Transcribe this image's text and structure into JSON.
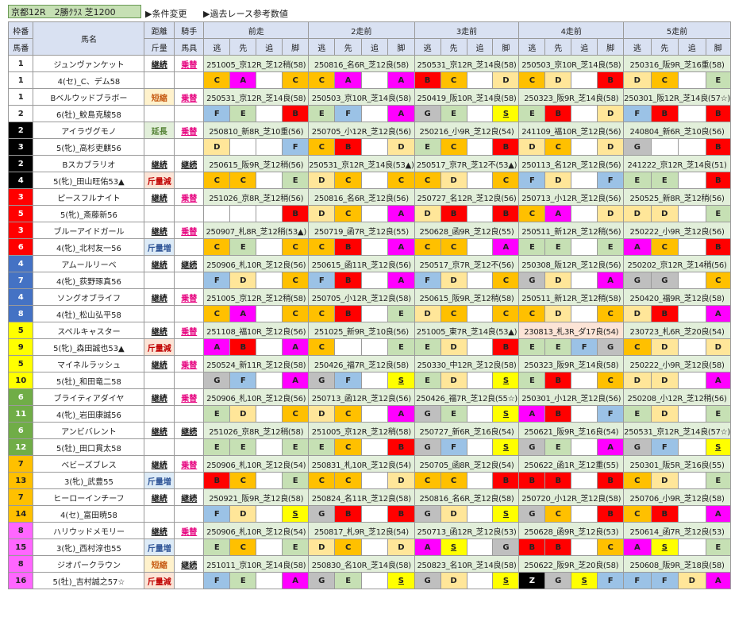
{
  "header": {
    "title": "京都12R　2勝ｸﾗｽ 芝1200",
    "link_condition": "▶条件変更",
    "link_past": "▶過去レース参考数値"
  },
  "columns": {
    "waku_top": "枠番",
    "umaban": "馬番",
    "horse": "馬名",
    "kyori": "距離",
    "kinryo": "斤量",
    "kishu": "騎手",
    "bagu": "馬具",
    "races": [
      "前走",
      "2走前",
      "3走前",
      "4走前",
      "5走前"
    ],
    "sub": [
      "逃",
      "先",
      "追",
      "脚"
    ]
  },
  "colors": {
    "A": "#ff00ff",
    "B": "#ff0000",
    "C": "#ffc000",
    "D": "#ffe699",
    "E": "#c6e0b4",
    "F": "#9bc2e6",
    "G": "#bfbfbf",
    "S": "#ffff00",
    "Z": "#000000",
    "waku": [
      "#ffffff",
      "#000000",
      "#ff0000",
      "#4472c4",
      "#ffff00",
      "#70ad47",
      "#ffc000",
      "#ff66ff"
    ]
  },
  "horses": [
    {
      "waku": "1",
      "uma": "1",
      "name": "ジュンヴァンケット",
      "jockey": "4(セ)_C、デム58",
      "kyori": "継続",
      "kinryo": "",
      "kishu": "乗替",
      "bagu": "",
      "races": [
        {
          "t": "251005_京12R_芝12稍(58)",
          "m": [
            "C",
            "A",
            "",
            "C"
          ]
        },
        {
          "t": "250816_名6R_芝12良(58)",
          "m": [
            "C",
            "A",
            "",
            "A"
          ]
        },
        {
          "t": "250531_京12R_芝14良(58)",
          "m": [
            "B",
            "C",
            "",
            "D"
          ]
        },
        {
          "t": "250503_京10R_芝14良(58)",
          "m": [
            "C",
            "D",
            "",
            "B"
          ]
        },
        {
          "t": "250316_阪9R_芝16重(58)",
          "m": [
            "D",
            "C",
            "",
            "E"
          ]
        }
      ]
    },
    {
      "waku": "1",
      "uma": "2",
      "name": "Bベルウッドブラボー",
      "jockey": "6(牡)_鮫島克駿58",
      "kyori": "短縮",
      "kinryo": "",
      "kishu": "乗替",
      "bagu": "",
      "races": [
        {
          "t": "250531_京12R_芝14良(58)",
          "m": [
            "F",
            "E",
            "",
            "B"
          ]
        },
        {
          "t": "250503_京10R_芝14良(58)",
          "m": [
            "E",
            "F",
            "",
            "A"
          ]
        },
        {
          "t": "250419_阪10R_芝14良(58)",
          "m": [
            "G",
            "E",
            "",
            "S"
          ]
        },
        {
          "t": "250323_阪9R_芝14良(58)",
          "m": [
            "E",
            "B",
            "",
            "D"
          ]
        },
        {
          "t": "250301_阪12R_芝14良(57☆)",
          "m": [
            "F",
            "B",
            "",
            "B"
          ]
        }
      ]
    },
    {
      "waku": "2",
      "uma": "3",
      "name": "アイラヴグモノ",
      "jockey": "5(牝)_高杉吏麒56",
      "kyori": "延長",
      "kinryo": "",
      "kishu": "乗替",
      "bagu": "",
      "races": [
        {
          "t": "250810_新8R_芝10重(56)",
          "m": [
            "D",
            "",
            "",
            "F"
          ]
        },
        {
          "t": "250705_小12R_芝12良(56)",
          "m": [
            "C",
            "B",
            "",
            "D"
          ]
        },
        {
          "t": "250216_小9R_芝12良(54)",
          "m": [
            "E",
            "C",
            "",
            "B"
          ]
        },
        {
          "t": "241109_福10R_芝12良(56)",
          "m": [
            "D",
            "C",
            "",
            "D"
          ]
        },
        {
          "t": "240804_新6R_芝10良(56)",
          "m": [
            "G",
            "",
            "",
            "B"
          ]
        }
      ]
    },
    {
      "waku": "2",
      "uma": "4",
      "name": "Bスカブラリオ",
      "jockey": "5(牝)_田山旺佑53▲",
      "kyori": "継続",
      "kinryo": "斤量減",
      "kishu": "継続",
      "bagu": "",
      "races": [
        {
          "t": "250615_阪9R_芝12稍(56)",
          "m": [
            "C",
            "C",
            "",
            "E"
          ]
        },
        {
          "t": "250531_京12R_芝14良(53▲)",
          "m": [
            "D",
            "C",
            "",
            "C"
          ]
        },
        {
          "t": "250517_京7R_芝12不(53▲)",
          "m": [
            "C",
            "D",
            "",
            "C"
          ]
        },
        {
          "t": "250113_名12R_芝12良(56)",
          "m": [
            "F",
            "D",
            "",
            "F"
          ]
        },
        {
          "t": "241222_京12R_芝14良(51)",
          "m": [
            "E",
            "E",
            "",
            "B"
          ]
        }
      ]
    },
    {
      "waku": "3",
      "uma": "5",
      "name": "ピースフルナイト",
      "jockey": "5(牝)_斎藤新56",
      "kyori": "継続",
      "kinryo": "",
      "kishu": "乗替",
      "bagu": "",
      "races": [
        {
          "t": "251026_京8R_芝12稍(56)",
          "m": [
            "",
            "",
            "",
            "B"
          ]
        },
        {
          "t": "250816_名6R_芝12良(56)",
          "m": [
            "D",
            "C",
            "",
            "A"
          ]
        },
        {
          "t": "250727_名12R_芝12良(56)",
          "m": [
            "D",
            "B",
            "",
            "B"
          ]
        },
        {
          "t": "250713_小12R_芝12良(56)",
          "m": [
            "C",
            "A",
            "",
            "D"
          ]
        },
        {
          "t": "250525_新8R_芝12稍(56)",
          "m": [
            "D",
            "D",
            "",
            "E"
          ]
        }
      ]
    },
    {
      "waku": "3",
      "uma": "6",
      "name": "ブルーアイドガール",
      "jockey": "4(牝)_北村友一56",
      "kyori": "継続",
      "kinryo": "斤量増",
      "kishu": "乗替",
      "bagu": "",
      "races": [
        {
          "t": "250907_札8R_芝12稍(53▲)",
          "m": [
            "C",
            "E",
            "",
            "C"
          ]
        },
        {
          "t": "250719_函7R_芝12良(55)",
          "m": [
            "C",
            "B",
            "",
            "A"
          ]
        },
        {
          "t": "250628_函9R_芝12良(55)",
          "m": [
            "C",
            "C",
            "",
            "A"
          ]
        },
        {
          "t": "250511_新12R_芝12稍(56)",
          "m": [
            "E",
            "E",
            "",
            "E"
          ]
        },
        {
          "t": "250222_小9R_芝12良(56)",
          "m": [
            "A",
            "C",
            "",
            "B"
          ]
        }
      ]
    },
    {
      "waku": "4",
      "uma": "7",
      "name": "アムールリーベ",
      "jockey": "4(牝)_荻野琢真56",
      "kyori": "継続",
      "kinryo": "",
      "kishu": "継続",
      "bagu": "",
      "races": [
        {
          "t": "250906_札10R_芝12良(56)",
          "m": [
            "F",
            "D",
            "",
            "C"
          ]
        },
        {
          "t": "250615_函11R_芝12良(56)",
          "m": [
            "F",
            "B",
            "",
            "A"
          ]
        },
        {
          "t": "250517_京7R_芝12不(56)",
          "m": [
            "F",
            "D",
            "",
            "C"
          ]
        },
        {
          "t": "250308_阪12R_芝12良(56)",
          "m": [
            "G",
            "D",
            "",
            "A"
          ]
        },
        {
          "t": "250202_京12R_芝14稍(56)",
          "m": [
            "G",
            "G",
            "",
            "C"
          ]
        }
      ]
    },
    {
      "waku": "4",
      "uma": "8",
      "name": "ソングオブライフ",
      "jockey": "4(牡)_松山弘平58",
      "kyori": "継続",
      "kinryo": "",
      "kishu": "乗替",
      "bagu": "",
      "races": [
        {
          "t": "251005_京12R_芝12稍(58)",
          "m": [
            "C",
            "A",
            "",
            "C"
          ]
        },
        {
          "t": "250705_小12R_芝12良(58)",
          "m": [
            "C",
            "B",
            "",
            "E"
          ]
        },
        {
          "t": "250615_阪9R_芝12稍(58)",
          "m": [
            "D",
            "C",
            "",
            "C"
          ]
        },
        {
          "t": "250511_新12R_芝12稍(58)",
          "m": [
            "C",
            "D",
            "",
            "C"
          ]
        },
        {
          "t": "250420_福9R_芝12良(58)",
          "m": [
            "D",
            "B",
            "",
            "A"
          ]
        }
      ]
    },
    {
      "waku": "5",
      "uma": "9",
      "name": "スペルキャスター",
      "jockey": "5(牝)_森田誠也53▲",
      "kyori": "継続",
      "kinryo": "斤量減",
      "kishu": "乗替",
      "bagu": "",
      "races": [
        {
          "t": "251108_福10R_芝12良(56)",
          "m": [
            "A",
            "B",
            "",
            "A"
          ]
        },
        {
          "t": "251025_新9R_芝10良(56)",
          "m": [
            "C",
            "",
            "",
            "E"
          ]
        },
        {
          "t": "251005_東7R_芝14良(53▲)",
          "m": [
            "E",
            "D",
            "",
            "B"
          ]
        },
        {
          "t": "230813_札3R_ダ17良(54)",
          "m": [
            "E",
            "E",
            "F",
            "G"
          ],
          "pink": true
        },
        {
          "t": "230723_札6R_芝20良(54)",
          "m": [
            "C",
            "D",
            "",
            "D"
          ]
        }
      ]
    },
    {
      "waku": "5",
      "uma": "10",
      "name": "マイネルラッシュ",
      "jockey": "5(牡)_和田竜二58",
      "kyori": "継続",
      "kinryo": "",
      "kishu": "乗替",
      "bagu": "",
      "races": [
        {
          "t": "250524_新11R_芝12良(58)",
          "m": [
            "G",
            "F",
            "",
            "A"
          ]
        },
        {
          "t": "250426_福7R_芝12良(58)",
          "m": [
            "G",
            "F",
            "",
            "S"
          ]
        },
        {
          "t": "250330_中12R_芝12良(58)",
          "m": [
            "E",
            "D",
            "",
            "S"
          ]
        },
        {
          "t": "250323_阪9R_芝14良(58)",
          "m": [
            "E",
            "B",
            "",
            "C"
          ]
        },
        {
          "t": "250222_小9R_芝12良(58)",
          "m": [
            "D",
            "D",
            "",
            "A"
          ]
        }
      ]
    },
    {
      "waku": "6",
      "uma": "11",
      "name": "ブライティアダイヤ",
      "jockey": "4(牝)_岩田康誠56",
      "kyori": "継続",
      "kinryo": "",
      "kishu": "乗替",
      "bagu": "",
      "races": [
        {
          "t": "250906_札10R_芝12良(56)",
          "m": [
            "E",
            "D",
            "",
            "C"
          ]
        },
        {
          "t": "250713_函12R_芝12良(56)",
          "m": [
            "D",
            "C",
            "",
            "A"
          ]
        },
        {
          "t": "250426_福7R_芝12良(55☆)",
          "m": [
            "G",
            "E",
            "",
            "S"
          ]
        },
        {
          "t": "250301_小12R_芝12良(56)",
          "m": [
            "A",
            "B",
            "",
            "F"
          ]
        },
        {
          "t": "250208_小12R_芝12稍(56)",
          "m": [
            "E",
            "D",
            "",
            "E"
          ]
        }
      ]
    },
    {
      "waku": "6",
      "uma": "12",
      "name": "アンビバレント",
      "jockey": "5(牡)_田口貫太58",
      "kyori": "継続",
      "kinryo": "",
      "kishu": "継続",
      "bagu": "",
      "races": [
        {
          "t": "251026_京8R_芝12稍(58)",
          "m": [
            "E",
            "E",
            "",
            "E"
          ]
        },
        {
          "t": "251005_京12R_芝12稍(58)",
          "m": [
            "E",
            "C",
            "",
            "B"
          ]
        },
        {
          "t": "250727_新6R_芝16良(54)",
          "m": [
            "G",
            "F",
            "",
            "S"
          ]
        },
        {
          "t": "250621_阪9R_芝16良(54)",
          "m": [
            "G",
            "E",
            "",
            "A"
          ]
        },
        {
          "t": "250531_京12R_芝14良(57☆)",
          "m": [
            "G",
            "F",
            "",
            "S"
          ]
        }
      ]
    },
    {
      "waku": "7",
      "uma": "13",
      "name": "ベビーズブレス",
      "jockey": "3(牝)_武豊55",
      "kyori": "継続",
      "kinryo": "斤量増",
      "kishu": "乗替",
      "bagu": "",
      "races": [
        {
          "t": "250906_札10R_芝12良(54)",
          "m": [
            "B",
            "C",
            "",
            "E"
          ]
        },
        {
          "t": "250831_札10R_芝12良(54)",
          "m": [
            "C",
            "C",
            "",
            "D"
          ]
        },
        {
          "t": "250705_函8R_芝12良(54)",
          "m": [
            "C",
            "C",
            "",
            "B"
          ]
        },
        {
          "t": "250622_函1R_芝12重(55)",
          "m": [
            "B",
            "B",
            "",
            "B"
          ]
        },
        {
          "t": "250301_阪5R_芝16良(55)",
          "m": [
            "C",
            "D",
            "",
            "E"
          ]
        }
      ]
    },
    {
      "waku": "7",
      "uma": "14",
      "name": "ヒーローインチーフ",
      "jockey": "4(セ)_富田暁58",
      "kyori": "継続",
      "kinryo": "",
      "kishu": "継続",
      "bagu": "",
      "races": [
        {
          "t": "250921_阪9R_芝12良(58)",
          "m": [
            "F",
            "D",
            "",
            "S"
          ]
        },
        {
          "t": "250824_名11R_芝12良(58)",
          "m": [
            "G",
            "B",
            "",
            "B"
          ]
        },
        {
          "t": "250816_名6R_芝12良(58)",
          "m": [
            "G",
            "D",
            "",
            "S"
          ]
        },
        {
          "t": "250720_小12R_芝12良(58)",
          "m": [
            "G",
            "C",
            "",
            "B"
          ]
        },
        {
          "t": "250706_小9R_芝12良(58)",
          "m": [
            "C",
            "B",
            "",
            "A"
          ]
        }
      ]
    },
    {
      "waku": "8",
      "uma": "15",
      "name": "ハリウッドメモリー",
      "jockey": "3(牝)_西村淳也55",
      "kyori": "継続",
      "kinryo": "斤量増",
      "kishu": "乗替",
      "bagu": "",
      "races": [
        {
          "t": "250906_札10R_芝12良(54)",
          "m": [
            "E",
            "C",
            "",
            "E"
          ]
        },
        {
          "t": "250817_札9R_芝12良(54)",
          "m": [
            "D",
            "C",
            "",
            "D"
          ]
        },
        {
          "t": "250713_函12R_芝12良(53)",
          "m": [
            "A",
            "S",
            "",
            "G"
          ]
        },
        {
          "t": "250628_函9R_芝12良(53)",
          "m": [
            "B",
            "B",
            "",
            "C"
          ]
        },
        {
          "t": "250614_函7R_芝12良(53)",
          "m": [
            "A",
            "S",
            "",
            "E"
          ]
        }
      ]
    },
    {
      "waku": "8",
      "uma": "16",
      "name": "ジオパークラウン",
      "jockey": "5(牡)_吉村誠之57☆",
      "kyori": "短縮",
      "kinryo": "斤量減",
      "kishu": "継続",
      "bagu": "",
      "races": [
        {
          "t": "251011_京10R_芝14良(58)",
          "m": [
            "F",
            "E",
            "",
            "A"
          ]
        },
        {
          "t": "250830_名10R_芝14良(58)",
          "m": [
            "G",
            "E",
            "",
            "S"
          ]
        },
        {
          "t": "250823_名10R_芝14良(58)",
          "m": [
            "G",
            "D",
            "",
            "S"
          ]
        },
        {
          "t": "250622_阪9R_芝20良(58)",
          "m": [
            "Z",
            "G",
            "S",
            "F"
          ]
        },
        {
          "t": "250608_阪9R_芝18良(58)",
          "m": [
            "F",
            "F",
            "D",
            "A"
          ]
        }
      ]
    }
  ]
}
